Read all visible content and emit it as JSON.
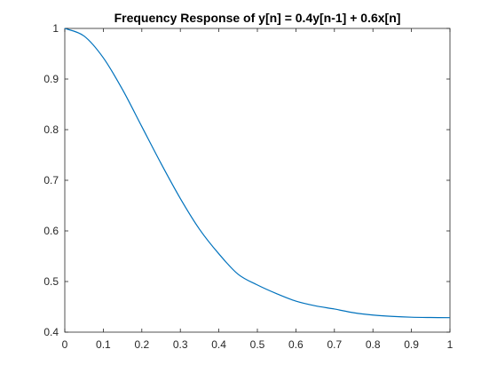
{
  "chart_data": {
    "type": "line",
    "title": "Frequency Response of y[n] = 0.4y[n-1] + 0.6x[n]",
    "xlabel": "",
    "ylabel": "",
    "xlim": [
      0,
      1
    ],
    "ylim": [
      0.4,
      1
    ],
    "x_ticks": [
      "0",
      "0.1",
      "0.2",
      "0.3",
      "0.4",
      "0.5",
      "0.6",
      "0.7",
      "0.8",
      "0.9",
      "1"
    ],
    "y_ticks": [
      "0.4",
      "0.5",
      "0.6",
      "0.7",
      "0.8",
      "0.9",
      "1"
    ],
    "grid": false,
    "line_color": "#0072BD",
    "series": [
      {
        "x": [
          0,
          0.05,
          0.1,
          0.15,
          0.2,
          0.25,
          0.3,
          0.35,
          0.4,
          0.45,
          0.5,
          0.55,
          0.6,
          0.65,
          0.7,
          0.75,
          0.8,
          0.85,
          0.9,
          0.95,
          1
        ],
        "values": [
          1.0,
          0.985,
          0.942,
          0.879,
          0.806,
          0.733,
          0.664,
          0.603,
          0.5547,
          0.5144,
          0.4932,
          0.476,
          0.4613,
          0.4521,
          0.4457,
          0.4384,
          0.4338,
          0.4311,
          0.4295,
          0.4289,
          0.4286
        ]
      }
    ]
  }
}
